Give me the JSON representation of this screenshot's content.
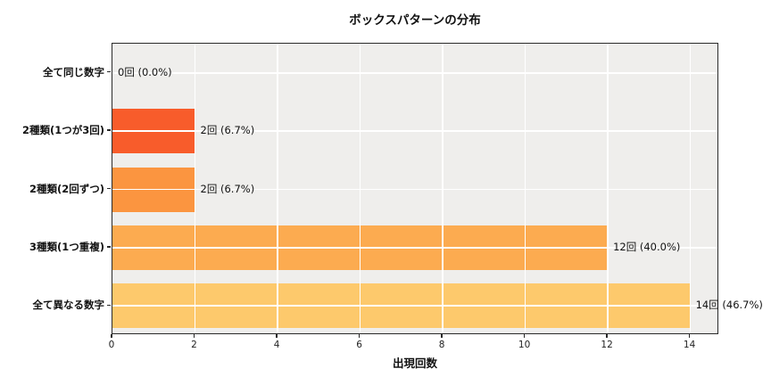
{
  "chart_data": {
    "type": "bar",
    "orientation": "horizontal",
    "title": "ボックスパターンの分布",
    "xlabel": "出現回数",
    "ylabel": "",
    "categories": [
      "全て同じ数字",
      "2種類(1つが3回)",
      "2種類(2回ずつ)",
      "3種類(1つ重複)",
      "全て異なる数字"
    ],
    "values": [
      0,
      2,
      2,
      12,
      14
    ],
    "percentages": [
      0.0,
      6.7,
      6.7,
      40.0,
      46.7
    ],
    "bar_labels": [
      "0回 (0.0%)",
      "2回 (6.7%)",
      "2回 (6.7%)",
      "12回 (40.0%)",
      "14回 (46.7%)"
    ],
    "bar_colors": [
      null,
      "#f85c2b",
      "#fb9540",
      "#fcab50",
      "#fdc96c"
    ],
    "x_ticks": [
      0,
      2,
      4,
      6,
      8,
      10,
      12,
      14
    ],
    "xlim": [
      0,
      14.7
    ],
    "grid": true,
    "legend": false,
    "plot_background": "#efeeec",
    "grid_color": "#ffffff",
    "spine_color": "#2a2a2a",
    "text_color": "#1a1a1a"
  }
}
